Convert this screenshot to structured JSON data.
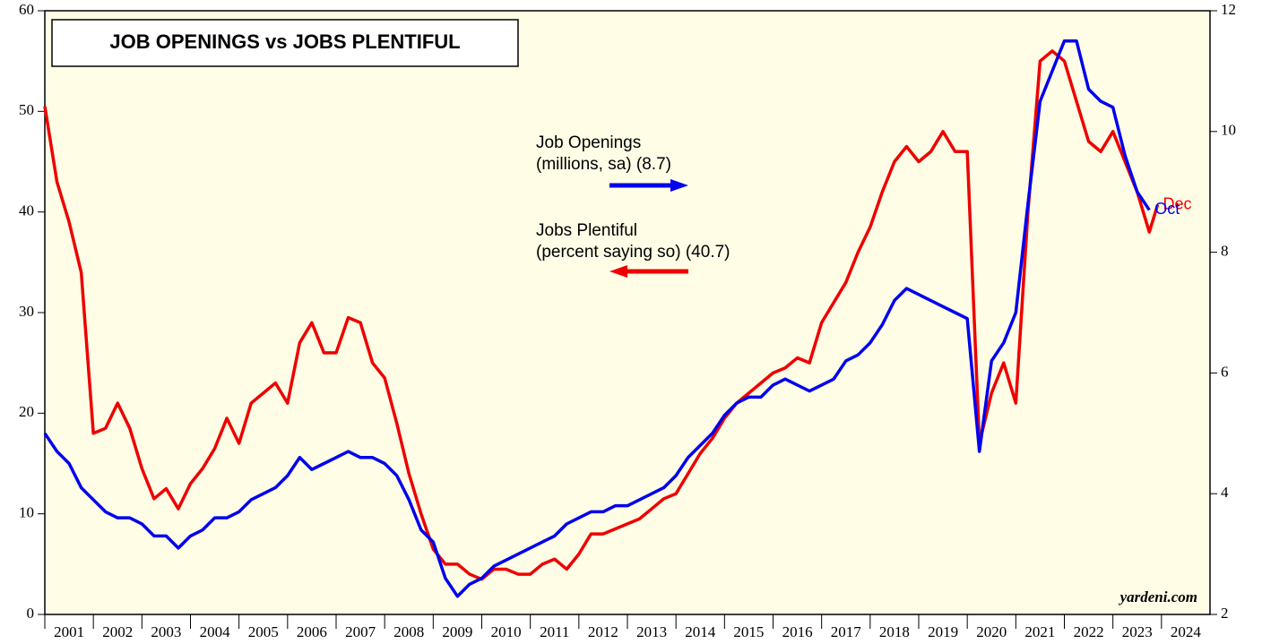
{
  "chart_data": {
    "type": "line",
    "title": "JOB OPENINGS vs JOBS PLENTIFUL",
    "watermark": "yardeni.com",
    "xlim": [
      2001,
      2025
    ],
    "xticks": [
      2001,
      2002,
      2003,
      2004,
      2005,
      2006,
      2007,
      2008,
      2009,
      2010,
      2011,
      2012,
      2013,
      2014,
      2015,
      2016,
      2017,
      2018,
      2019,
      2020,
      2021,
      2022,
      2023,
      2024
    ],
    "ylim": [
      0,
      60
    ],
    "yticks": [
      0,
      10,
      20,
      30,
      40,
      50,
      60
    ],
    "y2lim": [
      2,
      12
    ],
    "y2ticks": [
      2,
      4,
      6,
      8,
      10,
      12
    ],
    "series": [
      {
        "name": "Job Openings",
        "legend_note": "(millions, sa) (8.7)",
        "end_label": "Oct",
        "color": "#0000ee",
        "axis": "y2",
        "x": [
          2001,
          2001.25,
          2001.5,
          2001.75,
          2002,
          2002.25,
          2002.5,
          2002.75,
          2003,
          2003.25,
          2003.5,
          2003.75,
          2004,
          2004.25,
          2004.5,
          2004.75,
          2005,
          2005.25,
          2005.5,
          2005.75,
          2006,
          2006.25,
          2006.5,
          2006.75,
          2007,
          2007.25,
          2007.5,
          2007.75,
          2008,
          2008.25,
          2008.5,
          2008.75,
          2009,
          2009.25,
          2009.5,
          2009.75,
          2010,
          2010.25,
          2010.5,
          2010.75,
          2011,
          2011.25,
          2011.5,
          2011.75,
          2012,
          2012.25,
          2012.5,
          2012.75,
          2013,
          2013.25,
          2013.5,
          2013.75,
          2014,
          2014.25,
          2014.5,
          2014.75,
          2015,
          2015.25,
          2015.5,
          2015.75,
          2016,
          2016.25,
          2016.5,
          2016.75,
          2017,
          2017.25,
          2017.5,
          2017.75,
          2018,
          2018.25,
          2018.5,
          2018.75,
          2019,
          2019.25,
          2019.5,
          2019.75,
          2020,
          2020.25,
          2020.5,
          2020.75,
          2021,
          2021.25,
          2021.5,
          2021.75,
          2022,
          2022.25,
          2022.5,
          2022.75,
          2023,
          2023.25,
          2023.5,
          2023.75
        ],
        "values": [
          5.0,
          4.7,
          4.5,
          4.1,
          3.9,
          3.7,
          3.6,
          3.6,
          3.5,
          3.3,
          3.3,
          3.1,
          3.3,
          3.4,
          3.6,
          3.6,
          3.7,
          3.9,
          4.0,
          4.1,
          4.3,
          4.6,
          4.4,
          4.5,
          4.6,
          4.7,
          4.6,
          4.6,
          4.5,
          4.3,
          3.9,
          3.4,
          3.2,
          2.6,
          2.3,
          2.5,
          2.6,
          2.8,
          2.9,
          3.0,
          3.1,
          3.2,
          3.3,
          3.5,
          3.6,
          3.7,
          3.7,
          3.8,
          3.8,
          3.9,
          4.0,
          4.1,
          4.3,
          4.6,
          4.8,
          5.0,
          5.3,
          5.5,
          5.6,
          5.6,
          5.8,
          5.9,
          5.8,
          5.7,
          5.8,
          5.9,
          6.2,
          6.3,
          6.5,
          6.8,
          7.2,
          7.4,
          7.3,
          7.2,
          7.1,
          7.0,
          6.9,
          4.7,
          6.2,
          6.5,
          7.0,
          8.8,
          10.5,
          11.0,
          11.5,
          11.5,
          10.7,
          10.5,
          10.4,
          9.6,
          9.0,
          8.7
        ]
      },
      {
        "name": "Jobs Plentiful",
        "legend_note": "(percent saying so) (40.7)",
        "end_label": "Dec",
        "color": "#ee0000",
        "axis": "y",
        "x": [
          2001,
          2001.25,
          2001.5,
          2001.75,
          2002,
          2002.25,
          2002.5,
          2002.75,
          2003,
          2003.25,
          2003.5,
          2003.75,
          2004,
          2004.25,
          2004.5,
          2004.75,
          2005,
          2005.25,
          2005.5,
          2005.75,
          2006,
          2006.25,
          2006.5,
          2006.75,
          2007,
          2007.25,
          2007.5,
          2007.75,
          2008,
          2008.25,
          2008.5,
          2008.75,
          2009,
          2009.25,
          2009.5,
          2009.75,
          2010,
          2010.25,
          2010.5,
          2010.75,
          2011,
          2011.25,
          2011.5,
          2011.75,
          2012,
          2012.25,
          2012.5,
          2012.75,
          2013,
          2013.25,
          2013.5,
          2013.75,
          2014,
          2014.25,
          2014.5,
          2014.75,
          2015,
          2015.25,
          2015.5,
          2015.75,
          2016,
          2016.25,
          2016.5,
          2016.75,
          2017,
          2017.25,
          2017.5,
          2017.75,
          2018,
          2018.25,
          2018.5,
          2018.75,
          2019,
          2019.25,
          2019.5,
          2019.75,
          2020,
          2020.25,
          2020.5,
          2020.75,
          2021,
          2021.25,
          2021.5,
          2021.75,
          2022,
          2022.25,
          2022.5,
          2022.75,
          2023,
          2023.25,
          2023.5,
          2023.75,
          2023.92
        ],
        "values": [
          50.5,
          43,
          39,
          34,
          18,
          18.5,
          21,
          18.5,
          14.5,
          11.5,
          12.5,
          10.5,
          13,
          14.5,
          16.5,
          19.5,
          17,
          21,
          22,
          23,
          21,
          27,
          29,
          26,
          26,
          29.5,
          29,
          25,
          23.5,
          19,
          14,
          10,
          6.5,
          5,
          5,
          4,
          3.5,
          4.5,
          4.5,
          4,
          4,
          5,
          5.5,
          4.5,
          6,
          8,
          8,
          8.5,
          9,
          9.5,
          10.5,
          11.5,
          12,
          14,
          16,
          17.5,
          19.5,
          21,
          22,
          23,
          24,
          24.5,
          25.5,
          25,
          29,
          31,
          33,
          36,
          38.5,
          42,
          45,
          46.5,
          45,
          46,
          48,
          46,
          46,
          17,
          22,
          25,
          21,
          40,
          55,
          56,
          55,
          51,
          47,
          46,
          48,
          45,
          42,
          38,
          40.7
        ]
      }
    ]
  }
}
